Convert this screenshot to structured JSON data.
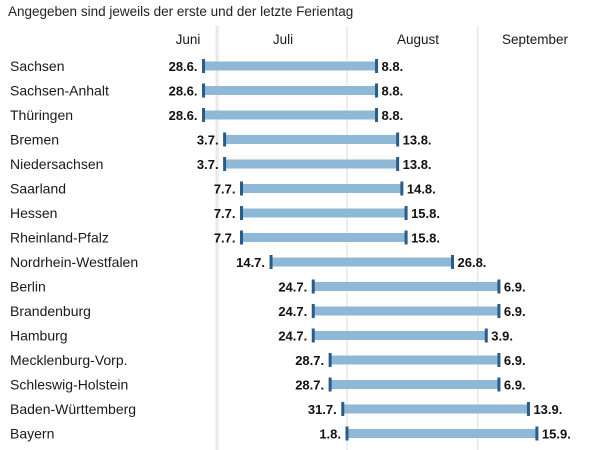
{
  "chart_data": {
    "type": "bar",
    "orientation": "horizontal-range",
    "subtitle": "Angegeben sind jeweils der erste und der letzte Ferientag",
    "months": [
      "Juni",
      "Juli",
      "August",
      "September"
    ],
    "grid": true,
    "bar_color": "#8fb8d6",
    "bar_end_color": "#2a5c8a",
    "rows": [
      {
        "state": "Sachsen",
        "start": "2023-06-28",
        "end": "2023-08-08",
        "start_label": "28.6.",
        "end_label": "8.8."
      },
      {
        "state": "Sachsen-Anhalt",
        "start": "2023-06-28",
        "end": "2023-08-08",
        "start_label": "28.6.",
        "end_label": "8.8."
      },
      {
        "state": "Thüringen",
        "start": "2023-06-28",
        "end": "2023-08-08",
        "start_label": "28.6.",
        "end_label": "8.8."
      },
      {
        "state": "Bremen",
        "start": "2023-07-03",
        "end": "2023-08-13",
        "start_label": "3.7.",
        "end_label": "13.8."
      },
      {
        "state": "Niedersachsen",
        "start": "2023-07-03",
        "end": "2023-08-13",
        "start_label": "3.7.",
        "end_label": "13.8."
      },
      {
        "state": "Saarland",
        "start": "2023-07-07",
        "end": "2023-08-14",
        "start_label": "7.7.",
        "end_label": "14.8."
      },
      {
        "state": "Hessen",
        "start": "2023-07-07",
        "end": "2023-08-15",
        "start_label": "7.7.",
        "end_label": "15.8."
      },
      {
        "state": "Rheinland-Pfalz",
        "start": "2023-07-07",
        "end": "2023-08-15",
        "start_label": "7.7.",
        "end_label": "15.8."
      },
      {
        "state": "Nordrhein-Westfalen",
        "start": "2023-07-14",
        "end": "2023-08-26",
        "start_label": "14.7.",
        "end_label": "26.8."
      },
      {
        "state": "Berlin",
        "start": "2023-07-24",
        "end": "2023-09-06",
        "start_label": "24.7.",
        "end_label": "6.9."
      },
      {
        "state": "Brandenburg",
        "start": "2023-07-24",
        "end": "2023-09-06",
        "start_label": "24.7.",
        "end_label": "6.9."
      },
      {
        "state": "Hamburg",
        "start": "2023-07-24",
        "end": "2023-09-03",
        "start_label": "24.7.",
        "end_label": "3.9."
      },
      {
        "state": "Mecklenburg-Vorp.",
        "start": "2023-07-28",
        "end": "2023-09-06",
        "start_label": "28.7.",
        "end_label": "6.9."
      },
      {
        "state": "Schleswig-Holstein",
        "start": "2023-07-28",
        "end": "2023-09-06",
        "start_label": "28.7.",
        "end_label": "6.9."
      },
      {
        "state": "Baden-Württemberg",
        "start": "2023-07-31",
        "end": "2023-09-13",
        "start_label": "31.7.",
        "end_label": "13.9."
      },
      {
        "state": "Bayern",
        "start": "2023-08-01",
        "end": "2023-09-15",
        "start_label": "1.8.",
        "end_label": "15.9."
      }
    ]
  }
}
